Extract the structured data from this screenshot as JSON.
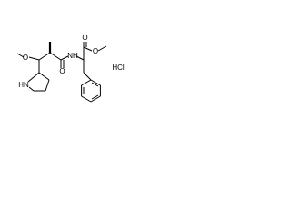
{
  "atoms": {
    "methoxy_oxygen": "O",
    "amide_oxygen": "O",
    "amide_nitrogen": "NH",
    "ester_carbonyl_oxygen": "O",
    "ester_oxygen": "O",
    "ring_nitrogen": "HN"
  },
  "salt": "HCl"
}
